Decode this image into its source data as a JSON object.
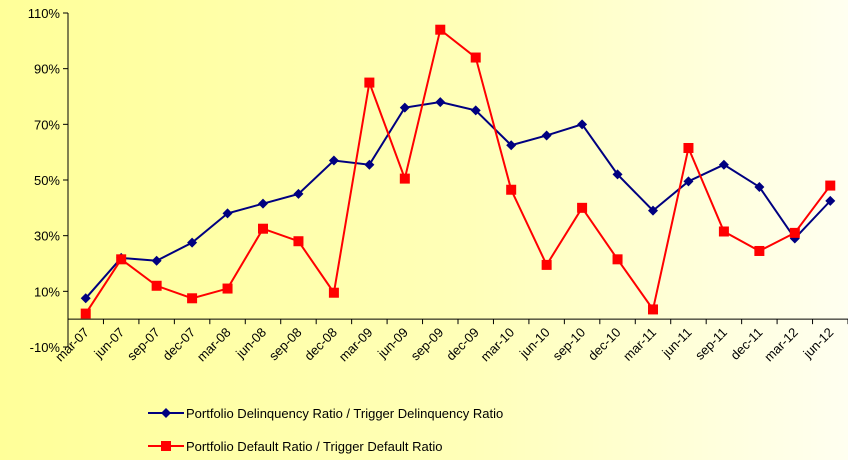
{
  "chart_data": {
    "type": "line",
    "categories": [
      "mar-07",
      "jun-07",
      "sep-07",
      "dec-07",
      "mar-08",
      "jun-08",
      "sep-08",
      "dec-08",
      "mar-09",
      "jun-09",
      "sep-09",
      "dec-09",
      "mar-10",
      "jun-10",
      "sep-10",
      "dec-10",
      "mar-11",
      "jun-11",
      "sep-11",
      "dec-11",
      "mar-12",
      "jun-12"
    ],
    "series": [
      {
        "name": "Portfolio Delinquency Ratio / Trigger Delinquency Ratio",
        "color": "#000080",
        "values": [
          7.5,
          22,
          21,
          27.5,
          38,
          41.5,
          45,
          57,
          55.5,
          76,
          78,
          75,
          62.5,
          66,
          70,
          52,
          39,
          49.5,
          55.5,
          47.5,
          29,
          42.5
        ]
      },
      {
        "name": "Portfolio Default Ratio / Trigger Default Ratio",
        "color": "#ff0000",
        "values": [
          2,
          21.5,
          12,
          7.5,
          11,
          32.5,
          28,
          9.5,
          85,
          50.5,
          104,
          94,
          46.5,
          19.5,
          40,
          21.5,
          3.5,
          61.5,
          31.5,
          24.5,
          31,
          48
        ]
      }
    ],
    "ylim": [
      -10,
      110
    ],
    "yticks": [
      {
        "value": -10,
        "label": "-10%"
      },
      {
        "value": 10,
        "label": "10%"
      },
      {
        "value": 30,
        "label": "30%"
      },
      {
        "value": 50,
        "label": "50%"
      },
      {
        "value": 70,
        "label": "70%"
      },
      {
        "value": 90,
        "label": "90%"
      },
      {
        "value": 110,
        "label": "110%"
      }
    ],
    "grid": false
  }
}
